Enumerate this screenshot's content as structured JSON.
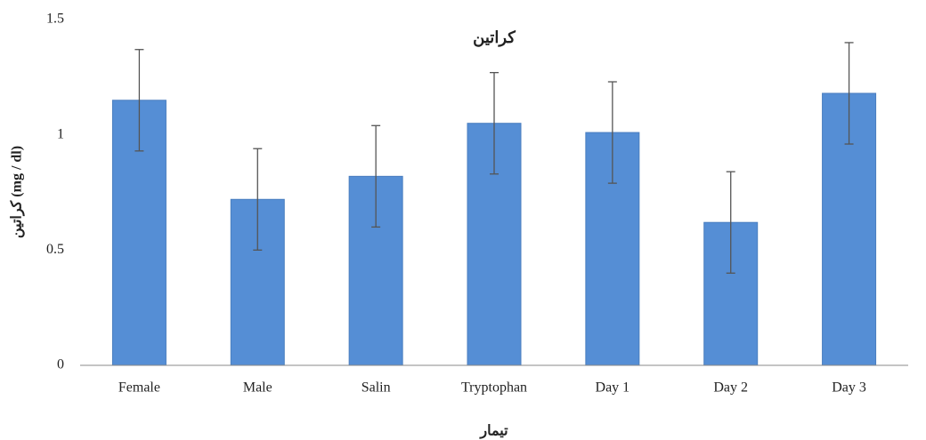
{
  "chart_data": {
    "type": "bar",
    "title": "كراتين",
    "y_label": "كراتين (mg / dl)",
    "x_label": "تیمار",
    "categories": [
      "Female",
      "Male",
      "Salin",
      "Tryptophan",
      "Day 1",
      "Day 2",
      "Day 3"
    ],
    "values": [
      1.15,
      0.72,
      0.82,
      1.05,
      1.01,
      0.62,
      1.18
    ],
    "errors": [
      0.22,
      0.22,
      0.22,
      0.22,
      0.22,
      0.22,
      0.22
    ],
    "color": "#558ed5",
    "ylim": [
      0,
      1.5
    ],
    "yticks": [
      0,
      0.5,
      1,
      1.5
    ],
    "grid": false
  }
}
